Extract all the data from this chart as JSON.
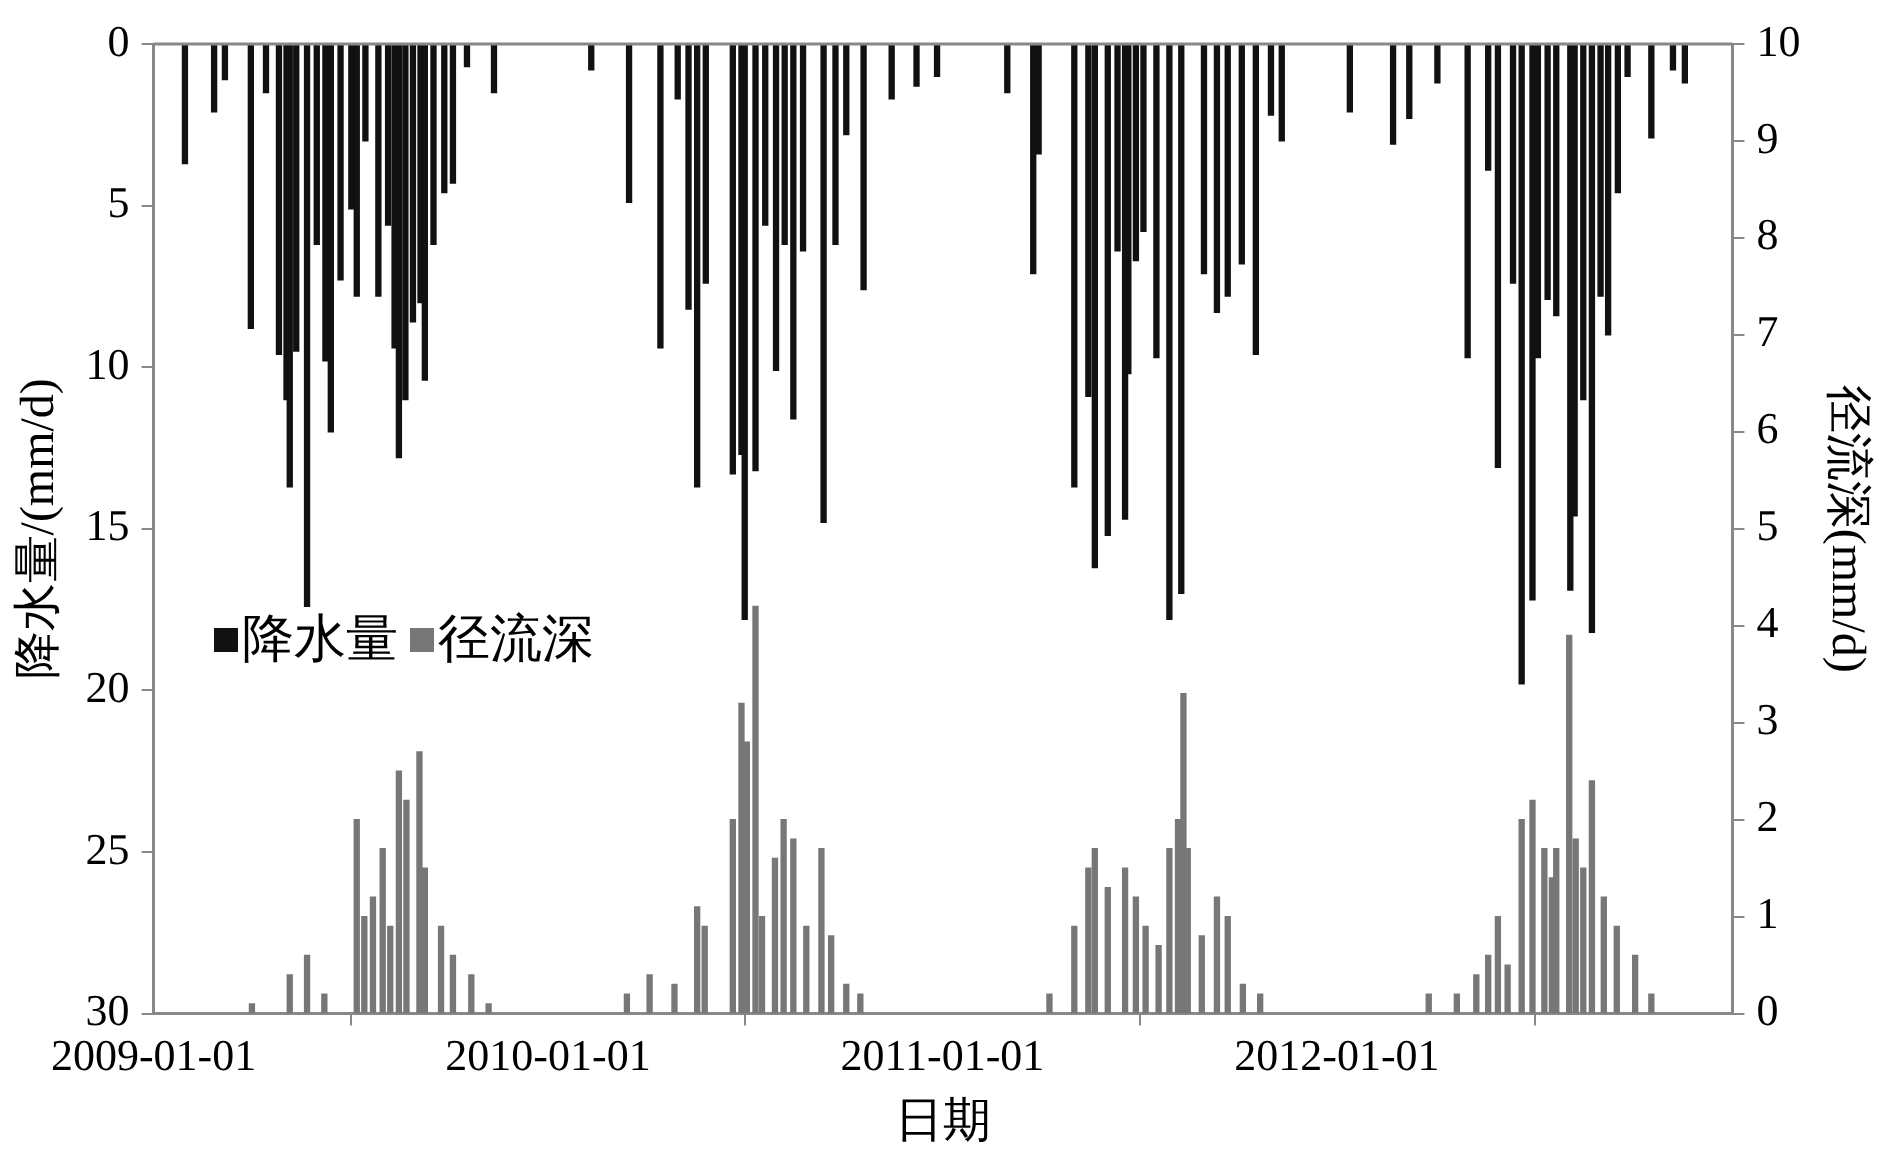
{
  "chart_data": {
    "type": "bar",
    "xlabel": "日期",
    "ylabel": "降水量/(mm/d)",
    "y2label": "径流深(mm/d)",
    "xlim": [
      "2009-01-01",
      "2013-01-01"
    ],
    "xticks": [
      {
        "value": "2009-01-01",
        "label": "2009-01-01"
      },
      {
        "value": "2010-01-01",
        "label": "2010-01-01"
      },
      {
        "value": "2011-01-01",
        "label": "2011-01-01"
      },
      {
        "value": "2012-01-01",
        "label": "2012-01-01"
      },
      {
        "value": "2013-01-01",
        "label": null
      }
    ],
    "ylim": [
      30,
      0
    ],
    "yticks": [
      0,
      5,
      10,
      15,
      20,
      25,
      30
    ],
    "y2lim": [
      0,
      10
    ],
    "y2ticks": [
      0,
      1,
      2,
      3,
      4,
      5,
      6,
      7,
      8,
      9,
      10
    ],
    "legend": "left",
    "grid": false,
    "series": [
      {
        "name": "降水量",
        "color": "#111111",
        "x": [
          "2009-01-30",
          "2009-02-26",
          "2009-03-08",
          "2009-04-01",
          "2009-04-15",
          "2009-04-27",
          "2009-05-04",
          "2009-05-07",
          "2009-05-13",
          "2009-05-23",
          "2009-06-01",
          "2009-06-09",
          "2009-06-14",
          "2009-06-23",
          "2009-07-03",
          "2009-07-08",
          "2009-07-16",
          "2009-07-28",
          "2009-08-06",
          "2009-08-12",
          "2009-08-16",
          "2009-08-22",
          "2009-08-29",
          "2009-09-05",
          "2009-09-09",
          "2009-09-17",
          "2009-09-27",
          "2009-10-05",
          "2009-10-18",
          "2009-11-12",
          "2010-02-10",
          "2010-03-17",
          "2010-04-15",
          "2010-05-01",
          "2010-05-11",
          "2010-05-19",
          "2010-05-27",
          "2010-06-21",
          "2010-06-29",
          "2010-07-02",
          "2010-07-12",
          "2010-07-21",
          "2010-07-31",
          "2010-08-08",
          "2010-08-16",
          "2010-08-25",
          "2010-09-13",
          "2010-09-24",
          "2010-10-04",
          "2010-10-20",
          "2010-11-15",
          "2010-12-08",
          "2010-12-27",
          "2011-03-02",
          "2011-03-26",
          "2011-03-31",
          "2011-05-03",
          "2011-05-16",
          "2011-05-22",
          "2011-06-03",
          "2011-06-12",
          "2011-06-19",
          "2011-06-22",
          "2011-06-29",
          "2011-07-06",
          "2011-07-18",
          "2011-07-27",
          "2011-07-30",
          "2011-08-10",
          "2011-08-31",
          "2011-09-12",
          "2011-09-22",
          "2011-10-05",
          "2011-10-18",
          "2011-11-01",
          "2011-11-11",
          "2012-01-13",
          "2012-02-22",
          "2012-03-08",
          "2012-04-03",
          "2012-05-01",
          "2012-05-20",
          "2012-05-29",
          "2012-06-12",
          "2012-06-20",
          "2012-06-30",
          "2012-07-05",
          "2012-07-14",
          "2012-07-22",
          "2012-08-04",
          "2012-08-08",
          "2012-08-16",
          "2012-08-24",
          "2012-09-01",
          "2012-09-08",
          "2012-09-17",
          "2012-09-26",
          "2012-10-18",
          "2012-11-07",
          "2012-11-18"
        ],
        "values": [
          3.7,
          2.1,
          1.1,
          8.8,
          1.5,
          9.6,
          11.0,
          13.7,
          9.5,
          17.4,
          6.2,
          9.8,
          12.0,
          7.3,
          5.1,
          7.8,
          3.0,
          7.8,
          5.6,
          9.4,
          12.8,
          11.0,
          8.6,
          8.0,
          10.4,
          6.2,
          4.6,
          4.3,
          0.7,
          1.5,
          0.8,
          4.9,
          9.4,
          1.7,
          8.2,
          13.7,
          7.4,
          13.3,
          12.7,
          17.8,
          13.2,
          5.6,
          10.1,
          6.2,
          11.6,
          6.4,
          14.8,
          6.2,
          2.8,
          7.6,
          1.7,
          1.3,
          1.0,
          1.5,
          7.1,
          3.4,
          13.7,
          10.9,
          16.2,
          15.2,
          6.4,
          14.7,
          10.2,
          6.7,
          5.8,
          9.7,
          null,
          17.8,
          17.0,
          7.1,
          8.3,
          7.8,
          6.8,
          9.6,
          2.2,
          3.0,
          2.1,
          3.1,
          2.3,
          1.2,
          9.7,
          3.9,
          13.1,
          7.4,
          19.8,
          17.2,
          9.7,
          7.9,
          8.4,
          16.9,
          14.6,
          11.0,
          18.2,
          7.8,
          9.0,
          4.6,
          1.0,
          2.9,
          0.8,
          1.2
        ]
      },
      {
        "name": "径流深",
        "color": "#777777",
        "axis": "y2",
        "x": [
          "2009-04-02",
          "2009-05-07",
          "2009-05-23",
          "2009-06-08",
          "2009-07-08",
          "2009-07-15",
          "2009-07-23",
          "2009-08-01",
          "2009-08-08",
          "2009-08-16",
          "2009-08-23",
          "2009-09-04",
          "2009-09-09",
          "2009-09-24",
          "2009-10-05",
          "2009-10-22",
          "2009-11-07",
          "2010-03-15",
          "2010-04-05",
          "2010-04-28",
          "2010-05-19",
          "2010-05-26",
          "2010-06-21",
          "2010-06-29",
          "2010-07-04",
          "2010-07-12",
          "2010-07-18",
          "2010-07-30",
          "2010-08-07",
          "2010-08-16",
          "2010-08-28",
          "2010-09-11",
          "2010-09-20",
          "2010-10-04",
          "2010-10-17",
          "2011-04-10",
          "2011-05-03",
          "2011-05-16",
          "2011-05-22",
          "2011-06-03",
          "2011-06-19",
          "2011-06-29",
          "2011-07-08",
          "2011-07-20",
          "2011-07-30",
          "2011-08-07",
          "2011-08-12",
          "2011-08-16",
          "2011-08-29",
          "2011-09-12",
          "2011-09-22",
          "2011-10-06",
          "2011-10-22",
          "2012-03-26",
          "2012-04-21",
          "2012-05-09",
          "2012-05-20",
          "2012-05-29",
          "2012-06-07",
          "2012-06-20",
          "2012-06-30",
          "2012-07-11",
          "2012-07-18",
          "2012-07-22",
          "2012-08-03",
          "2012-08-09",
          "2012-08-16",
          "2012-08-24",
          "2012-09-04",
          "2012-09-16",
          "2012-10-03",
          "2012-10-18"
        ],
        "values": [
          0.1,
          0.4,
          0.6,
          0.2,
          2.0,
          1.0,
          1.2,
          1.7,
          0.9,
          2.5,
          2.2,
          2.7,
          1.5,
          0.9,
          0.6,
          0.4,
          0.1,
          0.2,
          0.4,
          0.3,
          1.1,
          0.9,
          2.0,
          3.2,
          2.8,
          4.2,
          1.0,
          1.6,
          2.0,
          1.8,
          0.9,
          1.7,
          0.8,
          0.3,
          0.2,
          0.2,
          0.9,
          1.5,
          1.7,
          1.3,
          1.5,
          1.2,
          0.9,
          0.7,
          1.7,
          2.0,
          3.3,
          1.7,
          0.8,
          1.2,
          1.0,
          0.3,
          0.2,
          0.2,
          0.2,
          0.4,
          0.6,
          1.0,
          0.5,
          2.0,
          2.2,
          1.7,
          1.4,
          1.7,
          3.9,
          1.8,
          1.5,
          2.4,
          1.2,
          0.9,
          0.6,
          0.2
        ]
      }
    ]
  }
}
